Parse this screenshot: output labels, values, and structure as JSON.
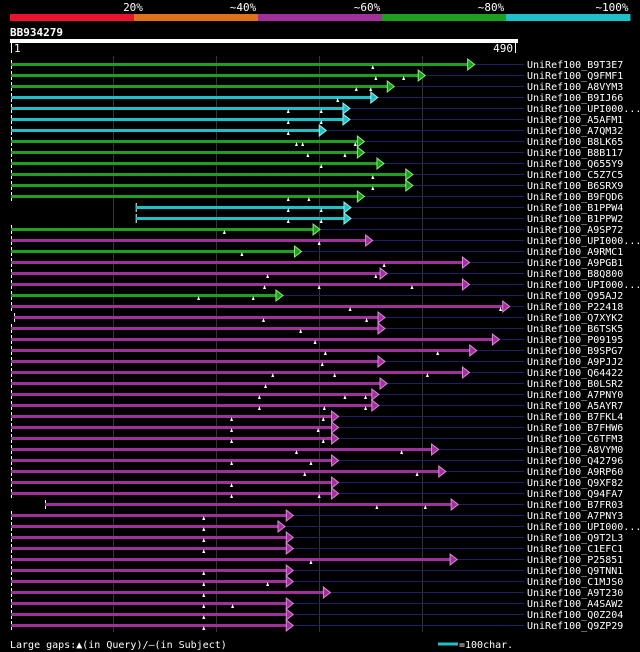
{
  "query": {
    "id": "BB934279",
    "length": 490,
    "start_label": "1",
    "end_label": "490"
  },
  "identity_legend": {
    "title": "percent identity color scale",
    "labels": [
      "20%",
      "~40%",
      "~60%",
      "~80%",
      "~100%"
    ],
    "colors": [
      "#e8132d",
      "#e0711c",
      "#a0309a",
      "#1f9f1f",
      "#20c0c8"
    ]
  },
  "colors": {
    "background": "#000000",
    "green": "#1f9f1f",
    "cyan": "#20c0c8",
    "magenta": "#a0309a",
    "subject_extension": "#1c2260",
    "grid": "#333333",
    "gap_marker": "#ffffff",
    "arrow_green": "#8af07a",
    "arrow_cyan": "#9af0f0",
    "arrow_magenta": "#e08ae0"
  },
  "hits": [
    {
      "name": "UniRef100_B9T3E7",
      "color": "green",
      "start": 1,
      "end": 446,
      "gaps": [
        352
      ]
    },
    {
      "name": "UniRef100_Q9FMF1",
      "color": "green",
      "start": 1,
      "end": 398,
      "gaps": [
        355,
        382
      ]
    },
    {
      "name": "UniRef100_A8VYM3",
      "color": "green",
      "start": 1,
      "end": 368,
      "gaps": [
        336,
        350
      ]
    },
    {
      "name": "UniRef100_B9IJ66",
      "color": "cyan",
      "start": 1,
      "end": 352,
      "gaps": [
        318
      ]
    },
    {
      "name": "UniRef100_UPI000...",
      "color": "cyan",
      "start": 1,
      "end": 325,
      "gaps": [
        270,
        302
      ]
    },
    {
      "name": "UniRef100_A5AFM1",
      "color": "cyan",
      "start": 1,
      "end": 325,
      "gaps": [
        270,
        302
      ]
    },
    {
      "name": "UniRef100_A7QM32",
      "color": "cyan",
      "start": 1,
      "end": 302,
      "gaps": [
        270
      ]
    },
    {
      "name": "UniRef100_B8LK65",
      "color": "green",
      "start": 1,
      "end": 339,
      "gaps": [
        278,
        284,
        335
      ]
    },
    {
      "name": "UniRef100_B8B117",
      "color": "green",
      "start": 1,
      "end": 339,
      "gaps": [
        289,
        325
      ]
    },
    {
      "name": "UniRef100_Q655Y9",
      "color": "green",
      "start": 1,
      "end": 358,
      "gaps": [
        302
      ]
    },
    {
      "name": "UniRef100_C5Z7C5",
      "color": "green",
      "start": 1,
      "end": 386,
      "gaps": [
        352
      ]
    },
    {
      "name": "UniRef100_B6SRX9",
      "color": "green",
      "start": 1,
      "end": 386,
      "gaps": [
        352
      ]
    },
    {
      "name": "UniRef100_B9FQD6",
      "color": "green",
      "start": 1,
      "end": 339,
      "gaps": [
        270,
        290
      ]
    },
    {
      "name": "UniRef100_B1PPW4",
      "color": "cyan",
      "start": 122,
      "end": 326,
      "gaps": [
        270,
        302
      ]
    },
    {
      "name": "UniRef100_B1PPW2",
      "color": "cyan",
      "start": 122,
      "end": 326,
      "gaps": [
        270,
        302
      ]
    },
    {
      "name": "UniRef100_A9SP72",
      "color": "green",
      "start": 1,
      "end": 296,
      "gaps": [
        208
      ]
    },
    {
      "name": "UniRef100_UPI000...",
      "color": "magenta",
      "start": 1,
      "end": 347,
      "gaps": [
        300
      ]
    },
    {
      "name": "UniRef100_A9RMC1",
      "color": "green",
      "start": 1,
      "end": 278,
      "gaps": [
        225
      ]
    },
    {
      "name": "UniRef100_A9PGB1",
      "color": "magenta",
      "start": 1,
      "end": 441,
      "gaps": [
        363
      ]
    },
    {
      "name": "UniRef100_B8Q800",
      "color": "magenta",
      "start": 1,
      "end": 361,
      "gaps": [
        250,
        355
      ]
    },
    {
      "name": "UniRef100_UPI000...",
      "color": "magenta",
      "start": 1,
      "end": 441,
      "gaps": [
        247,
        300,
        390
      ]
    },
    {
      "name": "UniRef100_Q95AJ2",
      "color": "green",
      "start": 1,
      "end": 260,
      "gaps": [
        183,
        236
      ]
    },
    {
      "name": "UniRef100_P22418",
      "color": "magenta",
      "start": 1,
      "end": 480,
      "gaps": [
        330,
        476
      ]
    },
    {
      "name": "UniRef100_Q7XYK2",
      "color": "magenta",
      "start": 4,
      "end": 359,
      "gaps": [
        246,
        346
      ]
    },
    {
      "name": "UniRef100_B6TSK5",
      "color": "magenta",
      "start": 1,
      "end": 359,
      "gaps": [
        282
      ]
    },
    {
      "name": "UniRef100_P09195",
      "color": "magenta",
      "start": 1,
      "end": 470,
      "gaps": [
        296
      ]
    },
    {
      "name": "UniRef100_B9SPG7",
      "color": "magenta",
      "start": 1,
      "end": 448,
      "gaps": [
        306,
        415
      ]
    },
    {
      "name": "UniRef100_A9PJJ2",
      "color": "magenta",
      "start": 1,
      "end": 359,
      "gaps": [
        303
      ]
    },
    {
      "name": "UniRef100_Q64422",
      "color": "magenta",
      "start": 1,
      "end": 441,
      "gaps": [
        255,
        315,
        405
      ]
    },
    {
      "name": "UniRef100_B0LSR2",
      "color": "magenta",
      "start": 1,
      "end": 361,
      "gaps": [
        248
      ]
    },
    {
      "name": "UniRef100_A7PNY0",
      "color": "magenta",
      "start": 1,
      "end": 353,
      "gaps": [
        242,
        325,
        345
      ]
    },
    {
      "name": "UniRef100_A5AYR7",
      "color": "magenta",
      "start": 1,
      "end": 353,
      "gaps": [
        242,
        305,
        345
      ]
    },
    {
      "name": "UniRef100_B7FKL4",
      "color": "magenta",
      "start": 1,
      "end": 314,
      "gaps": [
        215,
        304
      ]
    },
    {
      "name": "UniRef100_B7FHW6",
      "color": "magenta",
      "start": 1,
      "end": 314,
      "gaps": [
        215,
        299
      ]
    },
    {
      "name": "UniRef100_C6TFM3",
      "color": "magenta",
      "start": 1,
      "end": 314,
      "gaps": [
        215,
        304
      ]
    },
    {
      "name": "UniRef100_A8VYM0",
      "color": "magenta",
      "start": 1,
      "end": 411,
      "gaps": [
        278,
        380
      ]
    },
    {
      "name": "UniRef100_Q42796",
      "color": "magenta",
      "start": 1,
      "end": 314,
      "gaps": [
        215,
        292
      ]
    },
    {
      "name": "UniRef100_A9RP60",
      "color": "magenta",
      "start": 1,
      "end": 418,
      "gaps": [
        286,
        395
      ]
    },
    {
      "name": "UniRef100_Q9XF82",
      "color": "magenta",
      "start": 1,
      "end": 314,
      "gaps": [
        215
      ]
    },
    {
      "name": "UniRef100_Q94FA7",
      "color": "magenta",
      "start": 1,
      "end": 314,
      "gaps": [
        215,
        300
      ]
    },
    {
      "name": "UniRef100_B7FR03",
      "color": "magenta",
      "start": 34,
      "end": 430,
      "gaps": [
        356,
        403
      ]
    },
    {
      "name": "UniRef100_A7PNY3",
      "color": "magenta",
      "start": 1,
      "end": 270,
      "gaps": [
        188
      ]
    },
    {
      "name": "UniRef100_UPI000...",
      "color": "magenta",
      "start": 1,
      "end": 262,
      "gaps": [
        188
      ]
    },
    {
      "name": "UniRef100_Q9T2L3",
      "color": "magenta",
      "start": 1,
      "end": 270,
      "gaps": [
        188
      ]
    },
    {
      "name": "UniRef100_C1EFC1",
      "color": "magenta",
      "start": 1,
      "end": 270,
      "gaps": [
        188
      ]
    },
    {
      "name": "UniRef100_P25851",
      "color": "magenta",
      "start": 1,
      "end": 429,
      "gaps": [
        292
      ]
    },
    {
      "name": "UniRef100_Q9TNN1",
      "color": "magenta",
      "start": 1,
      "end": 270,
      "gaps": [
        188
      ]
    },
    {
      "name": "UniRef100_C1MJS0",
      "color": "magenta",
      "start": 1,
      "end": 270,
      "gaps": [
        188,
        250
      ]
    },
    {
      "name": "UniRef100_A9T230",
      "color": "magenta",
      "start": 1,
      "end": 306,
      "gaps": [
        188
      ]
    },
    {
      "name": "UniRef100_A4SAW2",
      "color": "magenta",
      "start": 1,
      "end": 270,
      "gaps": [
        188,
        216
      ]
    },
    {
      "name": "UniRef100_Q0Z204",
      "color": "magenta",
      "start": 1,
      "end": 270,
      "gaps": [
        188
      ]
    },
    {
      "name": "UniRef100_Q9ZP29",
      "color": "magenta",
      "start": 1,
      "end": 270,
      "gaps": [
        188
      ]
    }
  ],
  "footer": {
    "large_gaps_label": "Large gaps:",
    "query_marker": "▲",
    "in_query_label": "(in Query)/",
    "subject_marker": "—",
    "in_subject_label": "(in Subject)",
    "scale_label": "=100char."
  }
}
